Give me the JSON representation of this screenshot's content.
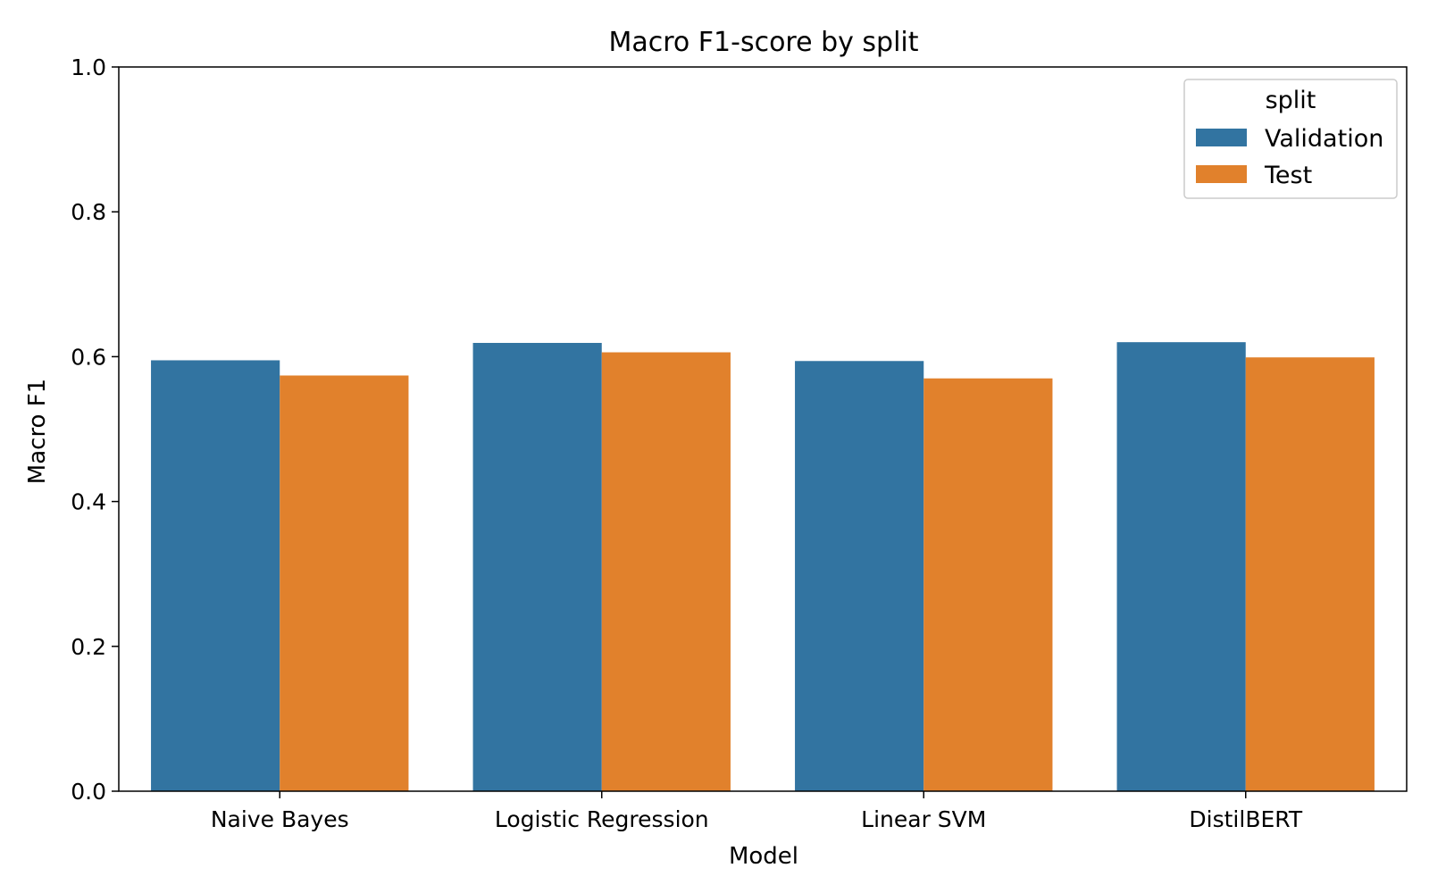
{
  "chart_data": {
    "type": "bar",
    "title": "Macro F1-score by split",
    "xlabel": "Model",
    "ylabel": "Macro F1",
    "ylim": [
      0,
      1.0
    ],
    "yticks": [
      "0.0",
      "0.2",
      "0.4",
      "0.6",
      "0.8",
      "1.0"
    ],
    "categories": [
      "Naive Bayes",
      "Logistic Regression",
      "Linear SVM",
      "DistilBERT"
    ],
    "series": [
      {
        "name": "Validation",
        "color": "#3274a1",
        "values": [
          0.595,
          0.619,
          0.594,
          0.62
        ]
      },
      {
        "name": "Test",
        "color": "#e1812c",
        "values": [
          0.574,
          0.606,
          0.57,
          0.599
        ]
      }
    ],
    "legend": {
      "title": "split",
      "placement": "top-right"
    },
    "grid": false
  }
}
